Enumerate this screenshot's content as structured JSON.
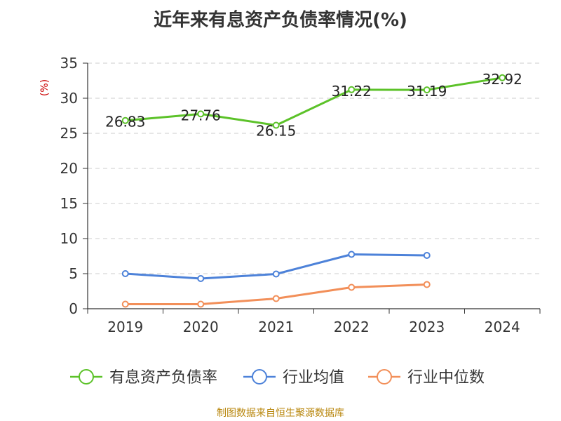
{
  "chart_data": {
    "type": "line",
    "title": "近年来有息资产负债率情况(%)",
    "ylabel": "(%)",
    "categories": [
      "2019",
      "2020",
      "2021",
      "2022",
      "2023",
      "2024"
    ],
    "ylim": [
      0,
      35
    ],
    "yticks": [
      0,
      5,
      10,
      15,
      20,
      25,
      30,
      35
    ],
    "grid": true,
    "legend_position": "bottom",
    "series": [
      {
        "name": "有息资产负债率",
        "color": "#5cc229",
        "values": [
          26.83,
          27.76,
          26.15,
          31.22,
          31.19,
          32.92
        ],
        "data_labels": [
          "26.83",
          "27.76",
          "26.15",
          "31.22",
          "31.19",
          "32.92"
        ]
      },
      {
        "name": "行业均值",
        "color": "#4d82d9",
        "values": [
          5.0,
          4.3,
          4.95,
          7.75,
          7.6,
          null
        ]
      },
      {
        "name": "行业中位数",
        "color": "#f28f59",
        "values": [
          0.65,
          0.65,
          1.45,
          3.05,
          3.45,
          null
        ]
      }
    ],
    "source": "制图数据来自恒生聚源数据库"
  }
}
